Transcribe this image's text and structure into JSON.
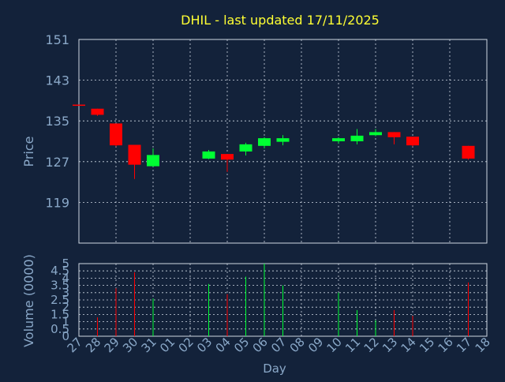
{
  "chart_data": [
    {
      "type": "candlestick",
      "title": "DHIL - last updated 17/11/2025",
      "ylabel": "Price",
      "ylim": [
        111,
        151
      ],
      "yticks": [
        151,
        143,
        135,
        127,
        119
      ],
      "x_categories": [
        "27",
        "28",
        "29",
        "30",
        "31",
        "01",
        "02",
        "03",
        "04",
        "05",
        "06",
        "07",
        "08",
        "09",
        "10",
        "11",
        "12",
        "13",
        "14",
        "15",
        "16",
        "17",
        "18"
      ],
      "grid": true,
      "candles": [
        {
          "day": "27",
          "open": 138.2,
          "close": 138.0,
          "high": 138.2,
          "low": 138.0,
          "direction": "down"
        },
        {
          "day": "28",
          "open": 137.4,
          "close": 136.2,
          "high": 137.4,
          "low": 136.0,
          "direction": "down"
        },
        {
          "day": "29",
          "open": 134.5,
          "close": 130.2,
          "high": 134.5,
          "low": 130.0,
          "direction": "down"
        },
        {
          "day": "30",
          "open": 130.3,
          "close": 126.4,
          "high": 130.3,
          "low": 123.6,
          "direction": "down"
        },
        {
          "day": "31",
          "open": 126.1,
          "close": 128.3,
          "high": 129.6,
          "low": 126.0,
          "direction": "up"
        },
        {
          "day": "03",
          "open": 127.6,
          "close": 129.0,
          "high": 129.3,
          "low": 127.5,
          "direction": "up"
        },
        {
          "day": "04",
          "open": 128.5,
          "close": 127.4,
          "high": 128.5,
          "low": 125.0,
          "direction": "down"
        },
        {
          "day": "05",
          "open": 129.0,
          "close": 130.4,
          "high": 130.7,
          "low": 128.2,
          "direction": "up"
        },
        {
          "day": "06",
          "open": 130.1,
          "close": 131.6,
          "high": 131.8,
          "low": 129.6,
          "direction": "up"
        },
        {
          "day": "07",
          "open": 130.9,
          "close": 131.6,
          "high": 132.2,
          "low": 130.2,
          "direction": "up"
        },
        {
          "day": "10",
          "open": 131.0,
          "close": 131.6,
          "high": 131.8,
          "low": 130.6,
          "direction": "up"
        },
        {
          "day": "11",
          "open": 131.0,
          "close": 132.1,
          "high": 133.4,
          "low": 130.4,
          "direction": "up"
        },
        {
          "day": "12",
          "open": 132.2,
          "close": 132.8,
          "high": 133.4,
          "low": 132.0,
          "direction": "up"
        },
        {
          "day": "13",
          "open": 132.8,
          "close": 131.8,
          "high": 132.8,
          "low": 130.4,
          "direction": "down"
        },
        {
          "day": "14",
          "open": 131.9,
          "close": 130.2,
          "high": 131.9,
          "low": 130.0,
          "direction": "down"
        },
        {
          "day": "17",
          "open": 130.1,
          "close": 127.6,
          "high": 130.1,
          "low": 127.4,
          "direction": "down"
        }
      ]
    },
    {
      "type": "bar",
      "ylabel": "Volume (0000)",
      "xlabel": "Day",
      "ylim": [
        0,
        5
      ],
      "yticks": [
        "0",
        "0.5",
        "1",
        "1.5",
        "2",
        "2.5",
        "3",
        "3.5",
        "4",
        "4.5",
        "5"
      ],
      "x_categories": [
        "27",
        "28",
        "29",
        "30",
        "31",
        "01",
        "02",
        "03",
        "04",
        "05",
        "06",
        "07",
        "08",
        "09",
        "10",
        "11",
        "12",
        "13",
        "14",
        "15",
        "16",
        "17",
        "18"
      ],
      "grid": true,
      "bars": [
        {
          "day": "28",
          "value": 1.3,
          "direction": "down"
        },
        {
          "day": "29",
          "value": 3.3,
          "direction": "down"
        },
        {
          "day": "30",
          "value": 4.4,
          "direction": "down"
        },
        {
          "day": "31",
          "value": 2.6,
          "direction": "up"
        },
        {
          "day": "03",
          "value": 3.6,
          "direction": "up"
        },
        {
          "day": "04",
          "value": 2.9,
          "direction": "down"
        },
        {
          "day": "05",
          "value": 4.1,
          "direction": "up"
        },
        {
          "day": "06",
          "value": 5.0,
          "direction": "up"
        },
        {
          "day": "07",
          "value": 3.5,
          "direction": "up"
        },
        {
          "day": "10",
          "value": 3.0,
          "direction": "up"
        },
        {
          "day": "11",
          "value": 1.8,
          "direction": "up"
        },
        {
          "day": "12",
          "value": 1.1,
          "direction": "up"
        },
        {
          "day": "13",
          "value": 1.8,
          "direction": "down"
        },
        {
          "day": "14",
          "value": 1.4,
          "direction": "down"
        },
        {
          "day": "17",
          "value": 3.7,
          "direction": "down"
        }
      ]
    }
  ],
  "colors": {
    "background": "#13223a",
    "title": "#ffff33",
    "axis_text": "#8aa8c8",
    "up": "#00ff33",
    "down": "#ff0000",
    "grid": "#cfd8e3"
  }
}
